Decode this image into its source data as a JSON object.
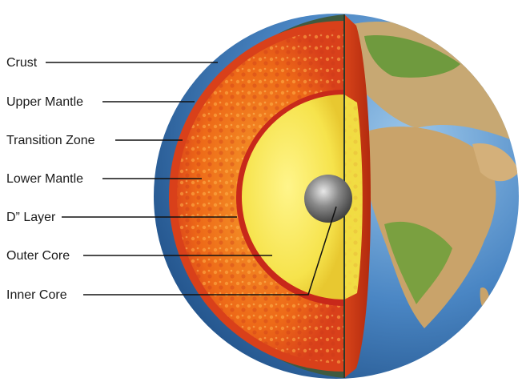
{
  "labels": [
    {
      "key": "crust",
      "text": "Crust"
    },
    {
      "key": "upper-mantle",
      "text": "Upper Mantle"
    },
    {
      "key": "transition-zone",
      "text": "Transition Zone"
    },
    {
      "key": "lower-mantle",
      "text": "Lower Mantle"
    },
    {
      "key": "d-layer",
      "text": "D” Layer"
    },
    {
      "key": "outer-core",
      "text": "Outer Core"
    },
    {
      "key": "inner-core",
      "text": "Inner Core"
    }
  ],
  "colors": {
    "ocean": "#3f7fbf",
    "land": "#c9a36a",
    "vegetation": "#6a9a3c",
    "crust": "#3f5a3f",
    "mantle": "#e8551c",
    "transition_zone": "#d43a12",
    "lower_mantle": "#f07a18",
    "d_layer": "#c8281a",
    "outer_core": "#f4e24a",
    "inner_core": "#6e6e6e",
    "cut_face": "#c0300f"
  }
}
